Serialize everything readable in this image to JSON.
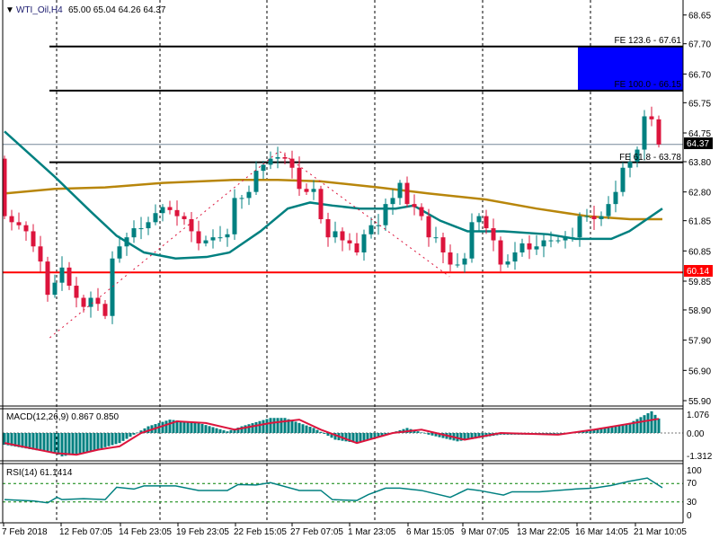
{
  "header": {
    "symbol_label": "WTI_Oil,H4",
    "ohlc": "65.00 65.04 64.26 64.37"
  },
  "colors": {
    "bull": "#008080",
    "bear": "#dc143c",
    "ma_fast": "#008080",
    "ma_slow": "#b8860b",
    "support": "#ff0000",
    "fe_zone": "#0000ff",
    "current_price": "#778899"
  },
  "price_axis": [
    "68.65",
    "67.70",
    "66.70",
    "65.75",
    "64.75",
    "63.80",
    "62.80",
    "61.85",
    "60.85",
    "59.85",
    "58.90",
    "57.90",
    "56.90",
    "55.90"
  ],
  "badges": {
    "current_price": "64.37",
    "support_price": "60.14"
  },
  "fibo_labels": {
    "fe_123": "FE 123.6 - 67.61",
    "fe_100": "FE 100.0 - 66.15",
    "fe_618": "FE 61.8 - 63.78"
  },
  "macd": {
    "label": "MACD(12,26,9) 0.867 0.850",
    "axis": [
      "1.076",
      "0.00",
      "-1.312"
    ]
  },
  "rsi": {
    "label": "RSI(14) 61.1414",
    "axis": [
      "100",
      "70",
      "30",
      "0"
    ]
  },
  "time_axis": [
    "7 Feb 2018",
    "12 Feb 07:05",
    "14 Feb 23:05",
    "19 Feb 23:05",
    "22 Feb 15:05",
    "27 Feb 07:05",
    "1 Mar 23:05",
    "6 Mar 15:05",
    "9 Mar 07:05",
    "13 Mar 22:05",
    "16 Mar 14:05",
    "21 Mar 10:05"
  ],
  "chart_data": {
    "type": "candlestick",
    "first_open": 63.9,
    "closes": [
      62.0,
      61.8,
      61.7,
      61.5,
      61.0,
      60.5,
      59.4,
      59.8,
      60.3,
      59.7,
      59.3,
      59.0,
      59.3,
      59.1,
      58.7,
      60.6,
      61.0,
      61.3,
      61.6,
      61.6,
      61.8,
      62.1,
      62.3,
      62.2,
      62.0,
      61.9,
      61.5,
      61.1,
      61.2,
      61.3,
      61.3,
      61.4,
      62.6,
      62.6,
      62.8,
      63.5,
      63.7,
      63.9,
      63.95,
      63.9,
      63.6,
      62.9,
      62.8,
      62.9,
      61.9,
      61.3,
      61.5,
      61.2,
      61.1,
      60.8,
      61.4,
      61.7,
      61.7,
      62.4,
      62.6,
      63.1,
      62.4,
      62.3,
      62.0,
      61.3,
      61.3,
      60.8,
      60.4,
      60.4,
      60.6,
      61.8,
      62.0,
      61.6,
      61.2,
      60.4,
      60.5,
      60.8,
      61.1,
      60.9,
      61.0,
      61.2,
      61.2,
      61.2,
      61.3,
      61.3,
      62.0,
      62.0,
      61.9,
      62.0,
      62.4,
      62.8,
      63.6,
      63.8,
      64.2,
      65.3,
      65.2,
      64.37
    ],
    "ma_fast": [
      [
        0,
        64.8
      ],
      [
        7,
        63.3
      ],
      [
        12,
        62.15
      ],
      [
        15.6,
        61.35
      ],
      [
        19.4,
        60.8
      ],
      [
        23.8,
        60.6
      ],
      [
        28.1,
        60.65
      ],
      [
        31.3,
        60.8
      ],
      [
        35.6,
        61.5
      ],
      [
        39.4,
        62.25
      ],
      [
        42.5,
        62.45
      ],
      [
        45.6,
        62.35
      ],
      [
        49.4,
        62.25
      ],
      [
        54.4,
        62.25
      ],
      [
        56.9,
        62.35
      ],
      [
        60.6,
        61.85
      ],
      [
        64.4,
        61.5
      ],
      [
        69.4,
        61.5
      ],
      [
        75.6,
        61.4
      ],
      [
        79.4,
        61.25
      ],
      [
        84.4,
        61.25
      ],
      [
        86.9,
        61.5
      ],
      [
        91.5,
        62.25
      ]
    ],
    "ma_slow": [
      [
        0,
        62.75
      ],
      [
        7,
        62.9
      ],
      [
        14,
        62.95
      ],
      [
        22,
        63.1
      ],
      [
        32,
        63.2
      ],
      [
        38,
        63.2
      ],
      [
        44,
        63.15
      ],
      [
        52,
        62.95
      ],
      [
        59,
        62.75
      ],
      [
        67,
        62.55
      ],
      [
        74,
        62.25
      ],
      [
        81,
        62.0
      ],
      [
        87,
        61.9
      ],
      [
        91.5,
        61.9
      ]
    ],
    "zigzag": [
      [
        6.3,
        57.98
      ],
      [
        38.2,
        64.15
      ],
      [
        61.9,
        60.0
      ]
    ],
    "levels": {
      "fe_123": 67.61,
      "fe_100": 66.15,
      "fe_618": 63.78,
      "support": 60.14,
      "current": 64.37
    },
    "macd_hist": [
      [
        0,
        -0.7
      ],
      [
        4,
        -1.0
      ],
      [
        7,
        -1.2
      ],
      [
        8,
        -1.4
      ],
      [
        12,
        -1.1
      ],
      [
        16,
        -0.6
      ],
      [
        18,
        -0.1
      ],
      [
        20,
        0.4
      ],
      [
        23,
        0.8
      ],
      [
        27,
        0.6
      ],
      [
        31,
        0.1
      ],
      [
        33,
        0.4
      ],
      [
        37,
        0.9
      ],
      [
        39,
        0.9
      ],
      [
        43,
        0.3
      ],
      [
        46,
        -0.4
      ],
      [
        49,
        -0.6
      ],
      [
        53,
        -0.1
      ],
      [
        56,
        0.3
      ],
      [
        59,
        -0.1
      ],
      [
        63,
        -0.5
      ],
      [
        66,
        -0.3
      ],
      [
        69,
        -0.1
      ],
      [
        74,
        -0.1
      ],
      [
        79,
        0.0
      ],
      [
        83,
        0.3
      ],
      [
        87,
        0.6
      ],
      [
        90,
        1.3
      ],
      [
        91,
        0.867
      ]
    ],
    "macd_signal": [
      [
        0,
        -0.6
      ],
      [
        7,
        -1.2
      ],
      [
        10,
        -1.3
      ],
      [
        13,
        -1.0
      ],
      [
        16,
        -0.8
      ],
      [
        19,
        0.0
      ],
      [
        24,
        0.7
      ],
      [
        28,
        0.6
      ],
      [
        32,
        0.2
      ],
      [
        37,
        0.6
      ],
      [
        41,
        0.8
      ],
      [
        44,
        0.2
      ],
      [
        49,
        -0.6
      ],
      [
        54,
        0.0
      ],
      [
        58,
        0.2
      ],
      [
        64,
        -0.4
      ],
      [
        69,
        0.0
      ],
      [
        77,
        -0.1
      ],
      [
        82,
        0.2
      ],
      [
        91,
        0.85
      ]
    ],
    "rsi": [
      [
        0,
        35
      ],
      [
        4,
        32
      ],
      [
        6,
        28
      ],
      [
        7.3,
        40
      ],
      [
        8,
        35
      ],
      [
        11,
        37
      ],
      [
        14,
        35
      ],
      [
        15.6,
        62
      ],
      [
        18,
        58
      ],
      [
        19.4,
        65
      ],
      [
        23.8,
        65
      ],
      [
        27,
        55
      ],
      [
        31,
        55
      ],
      [
        32.5,
        68
      ],
      [
        35,
        67
      ],
      [
        37,
        72
      ],
      [
        41,
        55
      ],
      [
        44,
        55
      ],
      [
        45.6,
        35
      ],
      [
        49,
        33
      ],
      [
        50.6,
        46
      ],
      [
        53,
        60
      ],
      [
        55,
        60
      ],
      [
        58,
        55
      ],
      [
        62,
        40
      ],
      [
        64.4,
        58
      ],
      [
        66,
        55
      ],
      [
        69.4,
        45
      ],
      [
        70.6,
        52
      ],
      [
        74.4,
        52
      ],
      [
        79.4,
        58
      ],
      [
        81.9,
        60
      ],
      [
        84.4,
        66
      ],
      [
        86.9,
        75
      ],
      [
        89.4,
        82
      ],
      [
        91.5,
        61
      ]
    ]
  }
}
